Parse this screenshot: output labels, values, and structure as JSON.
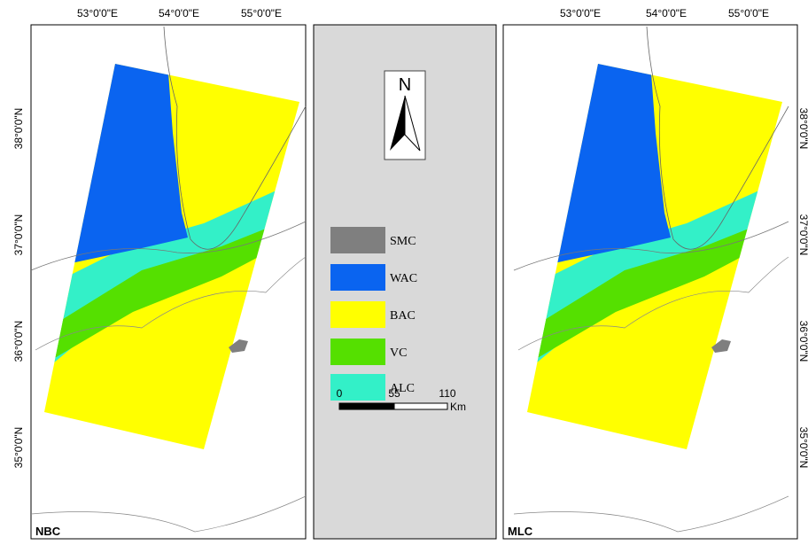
{
  "left_panel": {
    "label": "NBC",
    "top_ticks": [
      "53°0'0\"E",
      "54°0'0\"E",
      "55°0'0\"E"
    ],
    "side_ticks": [
      "38°0'0\"N",
      "37°0'0\"N",
      "36°0'0\"N",
      "35°0'0\"N"
    ]
  },
  "legend": {
    "north": "N",
    "items": [
      "SMC",
      "WAC",
      "BAC",
      "VC",
      "ALC"
    ],
    "scale": {
      "ticks": [
        "0",
        "55",
        "110"
      ],
      "unit": "Km"
    }
  },
  "right_panel": {
    "label": "MLC",
    "top_ticks": [
      "53°0'0\"E",
      "54°0'0\"E",
      "55°0'0\"E"
    ],
    "side_ticks": [
      "38°0'0\"N",
      "37°0'0\"N",
      "36°0'0\"N",
      "35°0'0\"N"
    ]
  }
}
